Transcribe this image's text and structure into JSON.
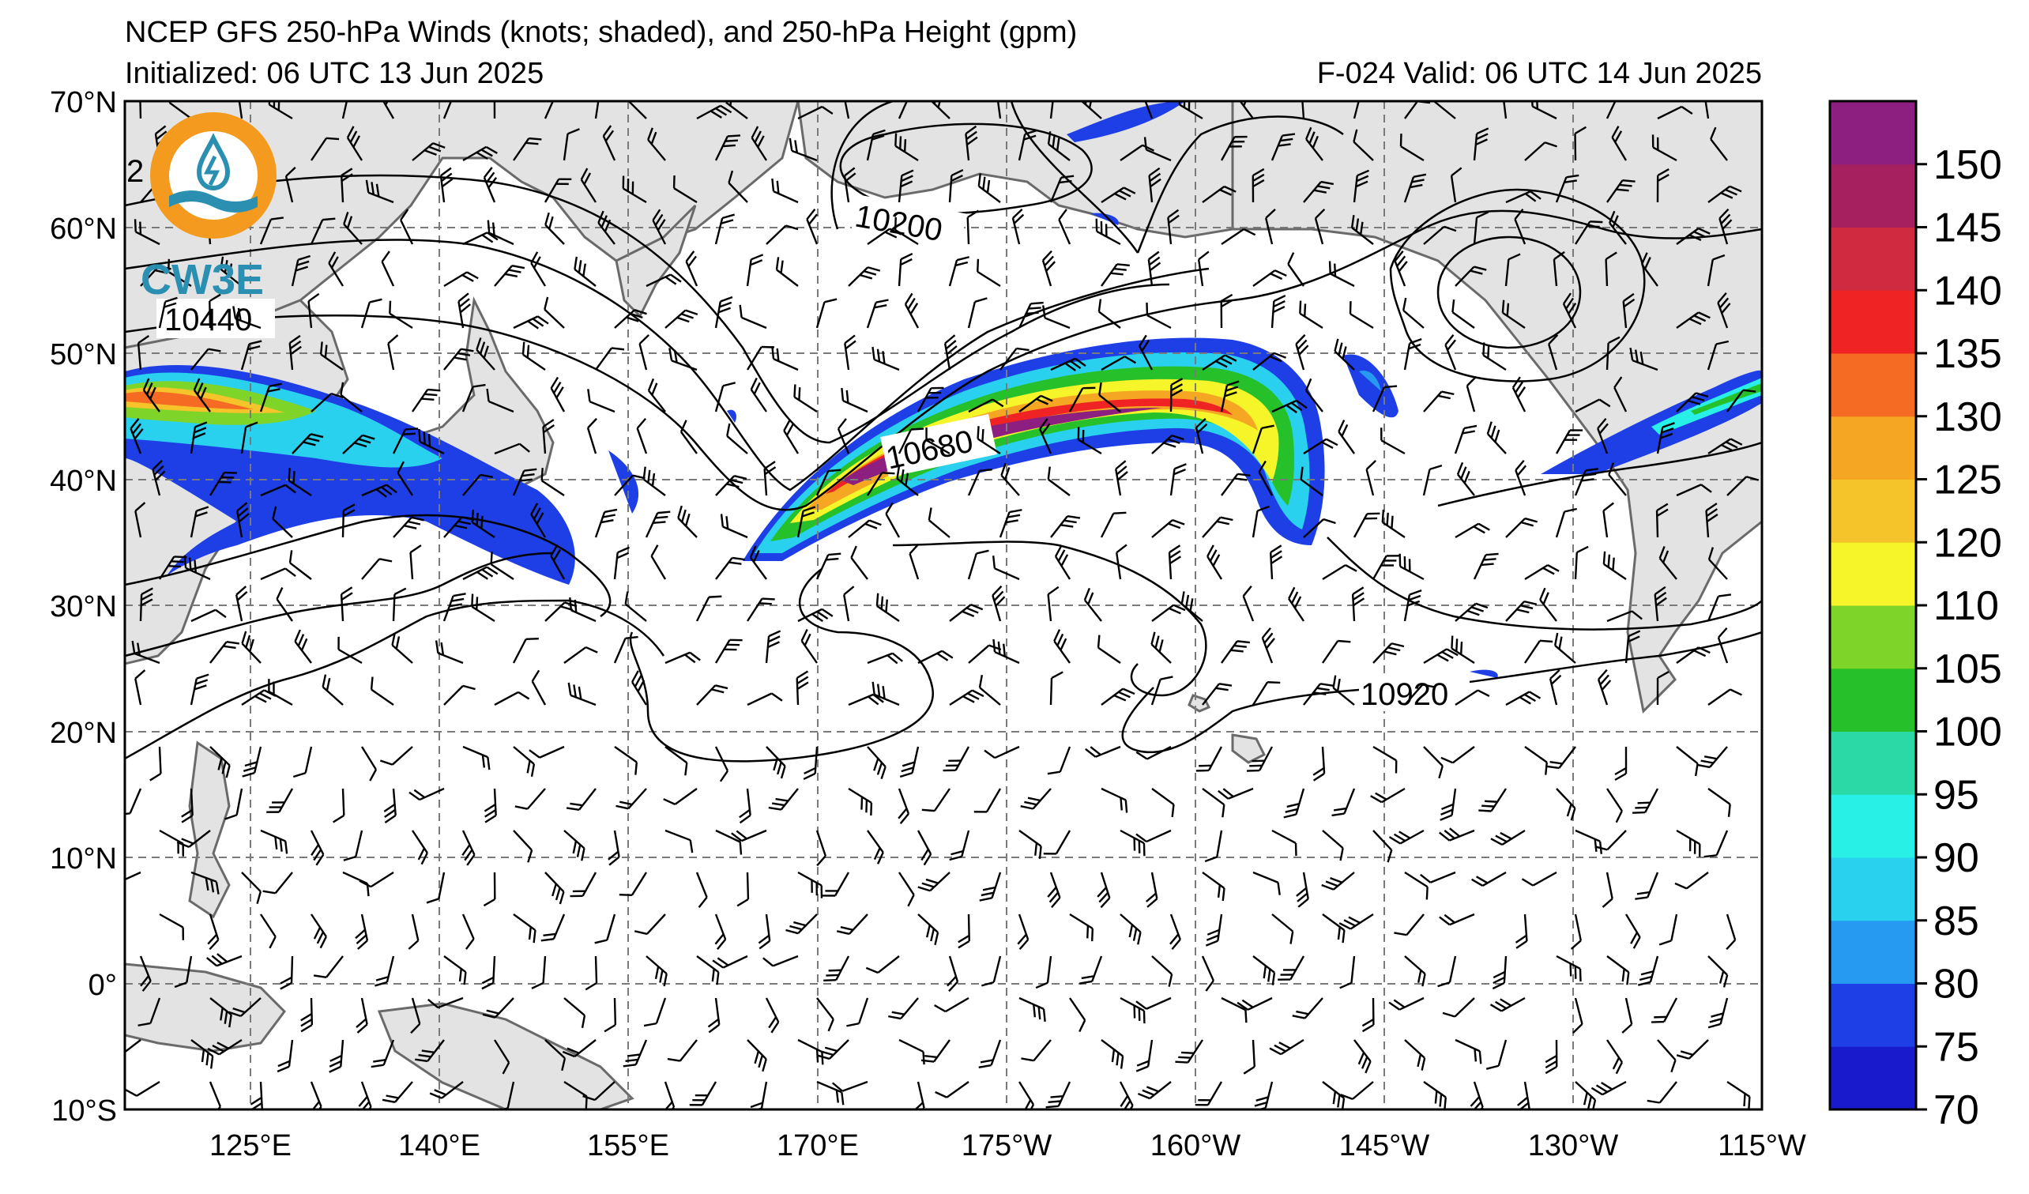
{
  "header": {
    "title": "NCEP GFS 250-hPa Winds (knots; shaded), and 250-hPa Height (gpm)",
    "initialized": "Initialized: 06 UTC 13 Jun 2025",
    "valid": "F-024  Valid: 06 UTC 14 Jun 2025"
  },
  "logo": {
    "text": "CW3E"
  },
  "map": {
    "lat_ticks": [
      "70°N",
      "60°N",
      "50°N",
      "40°N",
      "30°N",
      "20°N",
      "10°N",
      "0°",
      "10°S"
    ],
    "lon_ticks": [
      "125°E",
      "140°E",
      "155°E",
      "170°E",
      "175°W",
      "160°W",
      "145°W",
      "130°W",
      "115°W"
    ],
    "extent": {
      "lon_min": 115,
      "lon_max": 245,
      "lat_min": -10,
      "lat_max": 70
    },
    "height_contour_labels": [
      "10440",
      "10200",
      "10680",
      "10920"
    ],
    "partial_label": "2"
  },
  "colorbar": {
    "ticks": [
      "70",
      "75",
      "80",
      "85",
      "90",
      "95",
      "100",
      "105",
      "110",
      "120",
      "125",
      "130",
      "135",
      "140",
      "145",
      "150"
    ],
    "colors": [
      "#1a1acd",
      "#1f3fe6",
      "#2699f0",
      "#2ad1ef",
      "#28f0e6",
      "#2ad9a6",
      "#26c12a",
      "#7fd42a",
      "#f5f52a",
      "#f5c42a",
      "#f5a623",
      "#f56b23",
      "#ef2323",
      "#cf2a3f",
      "#a61f5e",
      "#8c1f80"
    ]
  }
}
